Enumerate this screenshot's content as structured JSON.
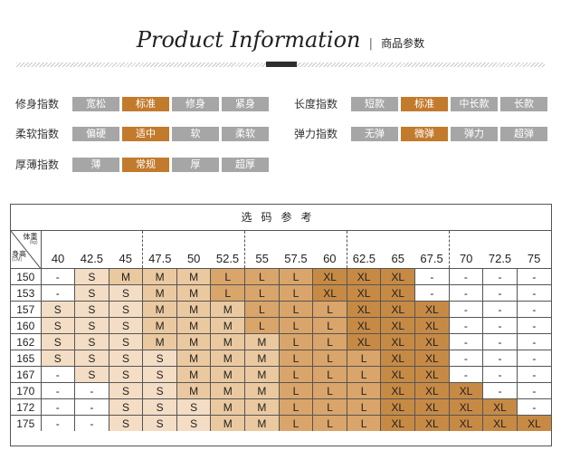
{
  "header": {
    "title_en": "Product Information",
    "separator": "|",
    "title_cn": "商品参数"
  },
  "colors": {
    "selected": "#c27a2c",
    "unselected": "#a6a6a6"
  },
  "params": [
    {
      "label": "修身指数",
      "options": [
        "宽松",
        "标准",
        "修身",
        "紧身"
      ],
      "selected": 1
    },
    {
      "label": "长度指数",
      "options": [
        "短款",
        "标准",
        "中长款",
        "长款"
      ],
      "selected": 1
    },
    {
      "label": "柔软指数",
      "options": [
        "偏硬",
        "适中",
        "软",
        "柔软"
      ],
      "selected": 1
    },
    {
      "label": "弹力指数",
      "options": [
        "无弹",
        "微弹",
        "弹力",
        "超弹"
      ],
      "selected": 1
    },
    {
      "label": "厚薄指数",
      "options": [
        "薄",
        "常规",
        "厚",
        "超厚"
      ],
      "selected": 1
    }
  ],
  "size_table": {
    "title": "选码参考",
    "corner": {
      "weight_label": "体重",
      "weight_unit": "(kg)",
      "height_label": "身高",
      "height_unit": "(CM)"
    },
    "weights": [
      "40",
      "42.5",
      "45",
      "47.5",
      "50",
      "52.5",
      "55",
      "57.5",
      "60",
      "62.5",
      "65",
      "67.5",
      "70",
      "72.5",
      "75"
    ],
    "rows": [
      {
        "height": "150",
        "cells": [
          "-",
          "S",
          "M",
          "M",
          "M",
          "L",
          "L",
          "L",
          "XL",
          "XL",
          "XL",
          "-",
          "-",
          "-",
          "-"
        ]
      },
      {
        "height": "153",
        "cells": [
          "-",
          "S",
          "S",
          "M",
          "M",
          "L",
          "L",
          "L",
          "XL",
          "XL",
          "XL",
          "-",
          "-",
          "-",
          "-"
        ]
      },
      {
        "height": "157",
        "cells": [
          "S",
          "S",
          "S",
          "M",
          "M",
          "M",
          "L",
          "L",
          "L",
          "XL",
          "XL",
          "XL",
          "-",
          "-",
          "-"
        ]
      },
      {
        "height": "160",
        "cells": [
          "S",
          "S",
          "S",
          "M",
          "M",
          "M",
          "L",
          "L",
          "L",
          "XL",
          "XL",
          "XL",
          "-",
          "-",
          "-"
        ]
      },
      {
        "height": "162",
        "cells": [
          "S",
          "S",
          "S",
          "M",
          "M",
          "M",
          "M",
          "L",
          "L",
          "XL",
          "XL",
          "XL",
          "-",
          "-",
          "-"
        ]
      },
      {
        "height": "165",
        "cells": [
          "S",
          "S",
          "S",
          "S",
          "M",
          "M",
          "M",
          "L",
          "L",
          "L",
          "XL",
          "XL",
          "-",
          "-",
          "-"
        ]
      },
      {
        "height": "167",
        "cells": [
          "-",
          "S",
          "S",
          "S",
          "M",
          "M",
          "M",
          "L",
          "L",
          "L",
          "XL",
          "XL",
          "-",
          "-",
          "-"
        ]
      },
      {
        "height": "170",
        "cells": [
          "-",
          "-",
          "S",
          "S",
          "M",
          "M",
          "M",
          "L",
          "L",
          "L",
          "XL",
          "XL",
          "XL",
          "-",
          "-"
        ]
      },
      {
        "height": "172",
        "cells": [
          "-",
          "-",
          "S",
          "S",
          "S",
          "M",
          "M",
          "L",
          "L",
          "L",
          "XL",
          "XL",
          "XL",
          "XL",
          "-"
        ]
      },
      {
        "height": "175",
        "cells": [
          "-",
          "-",
          "S",
          "S",
          "S",
          "M",
          "M",
          "L",
          "L",
          "L",
          "XL",
          "XL",
          "XL",
          "XL",
          "XL"
        ]
      }
    ],
    "size_colors": {
      "S": "#f3ddc4",
      "M": "#ebc9a0",
      "L": "#d9a56a",
      "XL": "#c78a45",
      "-": "#ffffff"
    }
  }
}
